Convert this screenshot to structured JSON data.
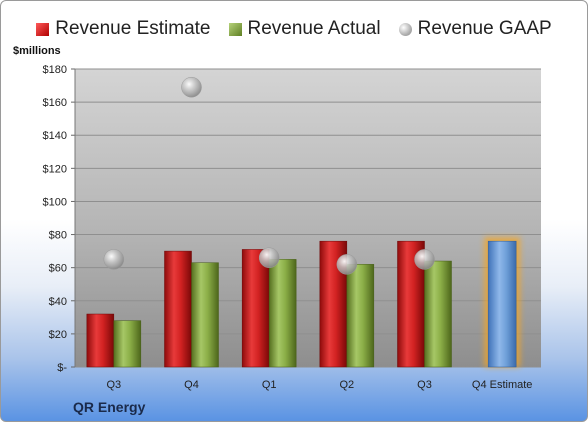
{
  "legend": {
    "estimate": "Revenue Estimate",
    "actual": "Revenue Actual",
    "gaap": "Revenue GAAP"
  },
  "units_label": "$millions",
  "company": "QR Energy",
  "colors": {
    "estimate": "#c81e1e",
    "actual": "#7da23a",
    "gaap": "#b8b8b8",
    "forecast": "#6e9fd8",
    "forecast_glow": "#f5a623",
    "plot_bg": "#bdbdbd"
  },
  "chart_data": {
    "type": "bar",
    "categories": [
      "Q3",
      "Q4",
      "Q1",
      "Q2",
      "Q3",
      "Q4 Estimate"
    ],
    "ylim": [
      0,
      180
    ],
    "ytick_values": [
      0,
      20,
      40,
      60,
      80,
      100,
      120,
      140,
      160,
      180
    ],
    "ytick_labels": [
      "$-",
      "$20",
      "$40",
      "$60",
      "$80",
      "$100",
      "$120",
      "$140",
      "$160",
      "$180"
    ],
    "grid": true,
    "legend_position": "top",
    "series": [
      {
        "name": "Revenue Estimate",
        "values": [
          32,
          70,
          71,
          76,
          76,
          null
        ]
      },
      {
        "name": "Revenue Actual",
        "values": [
          28,
          63,
          65,
          62,
          64,
          null
        ]
      },
      {
        "name": "Revenue GAAP",
        "values": [
          65,
          169,
          66,
          62,
          65,
          null
        ]
      }
    ],
    "forecast": {
      "category": "Q4 Estimate",
      "value": 76
    }
  }
}
